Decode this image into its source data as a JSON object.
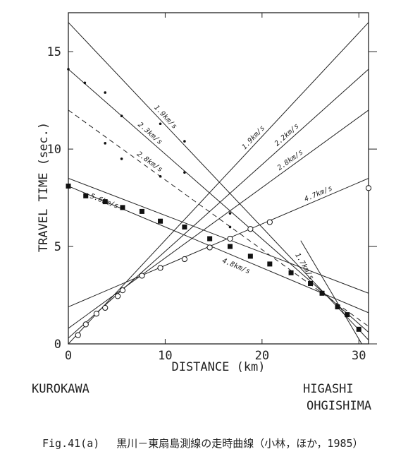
{
  "chart_data": {
    "type": "line",
    "xlabel": "DISTANCE (km)",
    "ylabel": "TRAVEL TIME (sec.)",
    "xlim": [
      0,
      31
    ],
    "ylim": [
      0,
      17
    ],
    "xticks": [
      0,
      10,
      20,
      30
    ],
    "yticks": [
      0,
      5,
      10,
      15
    ],
    "series": [
      {
        "name": "1.9km/s",
        "x": [
          0,
          31
        ],
        "values": [
          16.5,
          0.2
        ],
        "color": "#222",
        "dashed": false
      },
      {
        "name": "2.3km/s",
        "x": [
          0,
          31
        ],
        "values": [
          14.1,
          0.6
        ],
        "color": "#222",
        "dashed": false
      },
      {
        "name": "2.8km/s",
        "x": [
          0,
          31
        ],
        "values": [
          12.0,
          0.9
        ],
        "color": "#222",
        "dashed": true
      },
      {
        "name": "5.6km/s",
        "x": [
          0,
          31
        ],
        "values": [
          8.5,
          2.6
        ],
        "color": "#222",
        "dashed": false
      },
      {
        "name": "4.8km/s",
        "x": [
          0,
          31
        ],
        "values": [
          8.1,
          1.6
        ],
        "color": "#222",
        "dashed": false
      },
      {
        "name": "1.7km/s",
        "x": [
          24,
          30.3
        ],
        "values": [
          5.3,
          0
        ],
        "color": "#222",
        "dashed": false
      },
      {
        "name": "1.9km/s",
        "x": [
          0,
          31
        ],
        "values": [
          0,
          16.5
        ],
        "color": "#222",
        "dashed": false
      },
      {
        "name": "2.2km/s",
        "x": [
          0,
          31
        ],
        "values": [
          0.3,
          14.1
        ],
        "color": "#222",
        "dashed": false
      },
      {
        "name": "2.8km/s",
        "x": [
          0,
          31
        ],
        "values": [
          0.8,
          12.0
        ],
        "color": "#222",
        "dashed": false
      },
      {
        "name": "4.7km/s",
        "x": [
          0,
          31
        ],
        "values": [
          1.9,
          8.5
        ],
        "color": "#222",
        "dashed": false
      }
    ],
    "points": [
      {
        "marker": "square",
        "x": [
          0,
          1.8,
          3.8,
          5.6,
          7.6,
          9.5,
          12.0,
          14.6,
          16.7,
          18.8,
          20.8,
          23.0,
          25.0,
          26.2,
          27.8,
          28.8,
          30.0
        ],
        "values": [
          8.1,
          7.6,
          7.3,
          7.0,
          6.8,
          6.3,
          6.0,
          5.4,
          5.0,
          4.5,
          4.1,
          3.65,
          3.1,
          2.6,
          1.9,
          1.5,
          0.75
        ]
      },
      {
        "marker": "dot",
        "x": [
          0,
          1.7,
          3.8,
          3.8,
          5.5,
          5.5,
          9.5,
          9.5,
          12.0,
          12.0,
          16.7,
          16.7
        ],
        "values": [
          14.1,
          13.4,
          12.9,
          10.3,
          11.7,
          9.5,
          11.3,
          8.6,
          10.4,
          8.8,
          6.7,
          6.0
        ]
      },
      {
        "marker": "circle",
        "x": [
          1.0,
          1.8,
          2.9,
          3.8,
          5.1,
          5.6,
          7.6,
          9.5,
          12.0,
          14.6,
          16.7,
          18.8,
          20.8,
          31.0
        ],
        "values": [
          0.45,
          1.0,
          1.55,
          1.85,
          2.45,
          2.75,
          3.5,
          3.9,
          4.35,
          4.95,
          5.4,
          5.9,
          6.25,
          8.0
        ]
      }
    ],
    "left_station": "KUROKAWA",
    "right_station": [
      "HIGASHI",
      "OHGISHIMA"
    ]
  },
  "caption": "Fig.41(a)　 黒川－東扇島測線の走時曲線（小林，ほか，1985）"
}
